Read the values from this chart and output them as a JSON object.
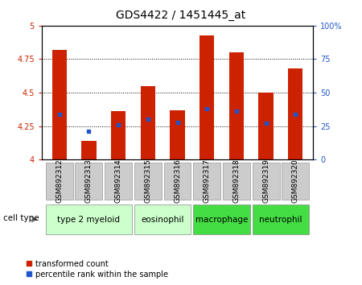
{
  "title": "GDS4422 / 1451445_at",
  "categories": [
    "GSM892312",
    "GSM892313",
    "GSM892314",
    "GSM892315",
    "GSM892316",
    "GSM892317",
    "GSM892318",
    "GSM892319",
    "GSM892320"
  ],
  "bar_values": [
    4.82,
    4.14,
    4.36,
    4.55,
    4.37,
    4.93,
    4.8,
    4.5,
    4.68
  ],
  "blue_values": [
    4.34,
    4.21,
    4.26,
    4.3,
    4.28,
    4.38,
    4.36,
    4.27,
    4.34
  ],
  "ylim": [
    4.0,
    5.0
  ],
  "yticks": [
    4.0,
    4.25,
    4.5,
    4.75,
    5.0
  ],
  "ytick_labels": [
    "4",
    "4.25",
    "4.5",
    "4.75",
    "5"
  ],
  "right_ytick_labels": [
    "0",
    "25",
    "50",
    "75",
    "100%"
  ],
  "bar_color": "#cc2200",
  "blue_color": "#2255cc",
  "left_tick_color": "#cc2200",
  "right_tick_color": "#2255cc",
  "cell_type_groups": [
    {
      "label": "type 2 myeloid",
      "indices": [
        0,
        1,
        2
      ],
      "color": "#ccffcc"
    },
    {
      "label": "eosinophil",
      "indices": [
        3,
        4
      ],
      "color": "#ccffcc"
    },
    {
      "label": "macrophage",
      "indices": [
        5,
        6
      ],
      "color": "#44dd44"
    },
    {
      "label": "neutrophil",
      "indices": [
        7,
        8
      ],
      "color": "#44dd44"
    }
  ],
  "cell_type_label": "cell type",
  "legend_items": [
    "transformed count",
    "percentile rank within the sample"
  ],
  "bar_width": 0.5,
  "title_fontsize": 10,
  "tick_fontsize": 7,
  "cell_type_fontsize": 7.5,
  "legend_fontsize": 7
}
